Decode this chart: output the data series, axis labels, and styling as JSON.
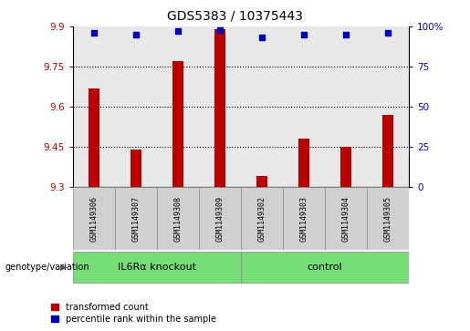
{
  "title": "GDS5383 / 10375443",
  "samples": [
    "GSM1149306",
    "GSM1149307",
    "GSM1149308",
    "GSM1149309",
    "GSM1149302",
    "GSM1149303",
    "GSM1149304",
    "GSM1149305"
  ],
  "red_values": [
    9.67,
    9.44,
    9.77,
    9.89,
    9.34,
    9.48,
    9.45,
    9.57
  ],
  "blue_values": [
    96,
    95,
    97,
    98,
    93,
    95,
    95,
    96
  ],
  "ylim_left": [
    9.3,
    9.9
  ],
  "ylim_right": [
    0,
    100
  ],
  "yticks_left": [
    9.3,
    9.45,
    9.6,
    9.75,
    9.9
  ],
  "yticks_right": [
    0,
    25,
    50,
    75,
    100
  ],
  "ytick_labels_left": [
    "9.3",
    "9.45",
    "9.6",
    "9.75",
    "9.9"
  ],
  "ytick_labels_right": [
    "0",
    "25",
    "50",
    "75",
    "100%"
  ],
  "groups": [
    {
      "label": "IL6Rα knockout",
      "indices": [
        0,
        1,
        2,
        3
      ],
      "color": "#77DD77"
    },
    {
      "label": "control",
      "indices": [
        4,
        5,
        6,
        7
      ],
      "color": "#77DD77"
    }
  ],
  "group_label_prefix": "genotype/variation",
  "red_color": "#BB0000",
  "blue_color": "#0000BB",
  "bar_width": 0.25,
  "grid_color": "black",
  "grid_lines": [
    9.45,
    9.6,
    9.75
  ],
  "bg_color_plot": "#E8E8E8",
  "bg_color_sample_labels": "#D0D0D0",
  "legend_red_label": "transformed count",
  "legend_blue_label": "percentile rank within the sample"
}
